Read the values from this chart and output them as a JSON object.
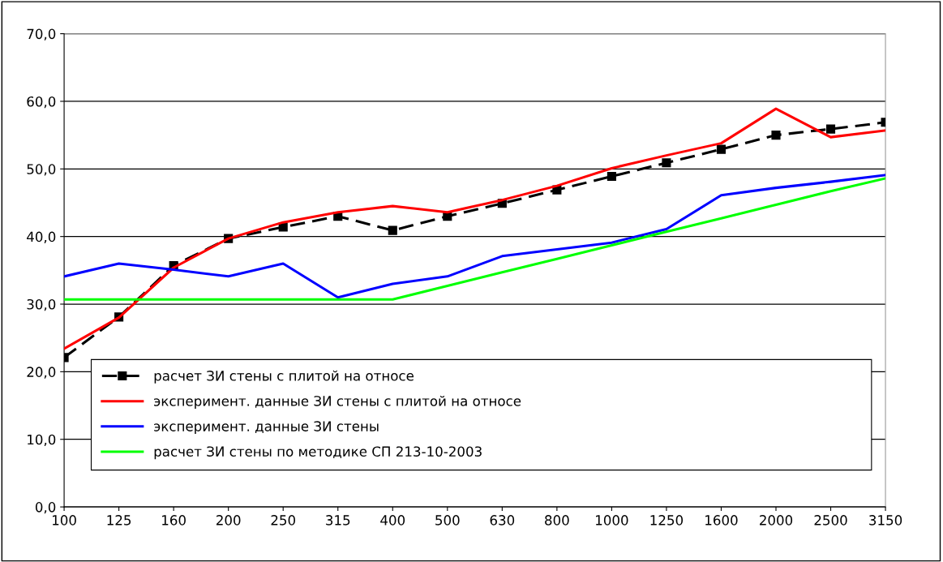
{
  "chart_data": {
    "type": "line",
    "categories": [
      "100",
      "125",
      "160",
      "200",
      "250",
      "315",
      "400",
      "500",
      "630",
      "800",
      "1000",
      "1250",
      "1600",
      "2000",
      "2500",
      "3150"
    ],
    "ylim": [
      0,
      70
    ],
    "yticks": [
      {
        "value": 0,
        "label": "0,0"
      },
      {
        "value": 10,
        "label": "10,0"
      },
      {
        "value": 20,
        "label": "20,0"
      },
      {
        "value": 30,
        "label": "30,0"
      },
      {
        "value": 40,
        "label": "40,0"
      },
      {
        "value": 50,
        "label": "50,0"
      },
      {
        "value": 60,
        "label": "60,0"
      },
      {
        "value": 70,
        "label": "70,0"
      }
    ],
    "grid": "y",
    "legend": "bottom",
    "series": [
      {
        "name": "расчет ЗИ стены с плитой на относе",
        "color": "#000000",
        "marker": "square",
        "line_style": "dashed",
        "values": [
          22.1,
          28.1,
          35.7,
          39.7,
          41.4,
          43.0,
          40.9,
          43.0,
          44.9,
          46.9,
          48.9,
          50.9,
          52.9,
          55.0,
          55.9,
          56.9
        ]
      },
      {
        "name": "эксперимент. данные ЗИ стены с плитой на относе",
        "color": "#ff0000",
        "values": [
          23.4,
          28.0,
          35.4,
          39.7,
          42.1,
          43.6,
          44.5,
          43.6,
          45.4,
          47.5,
          50.1,
          52.0,
          53.8,
          58.9,
          54.7,
          55.7
        ]
      },
      {
        "name": "эксперимент. данные ЗИ стены",
        "color": "#0000ff",
        "values": [
          34.1,
          36.0,
          35.1,
          34.1,
          36.0,
          31.0,
          33.0,
          34.1,
          37.1,
          38.1,
          39.1,
          41.1,
          46.1,
          47.2,
          48.1,
          49.1
        ]
      },
      {
        "name": "расчет ЗИ стены по методике СП 213-10-2003",
        "color": "#00ff00",
        "values": [
          30.7,
          30.7,
          30.7,
          30.7,
          30.7,
          30.7,
          30.7,
          32.7,
          34.7,
          36.7,
          38.7,
          40.7,
          42.7,
          44.7,
          46.7,
          48.6
        ]
      }
    ]
  }
}
